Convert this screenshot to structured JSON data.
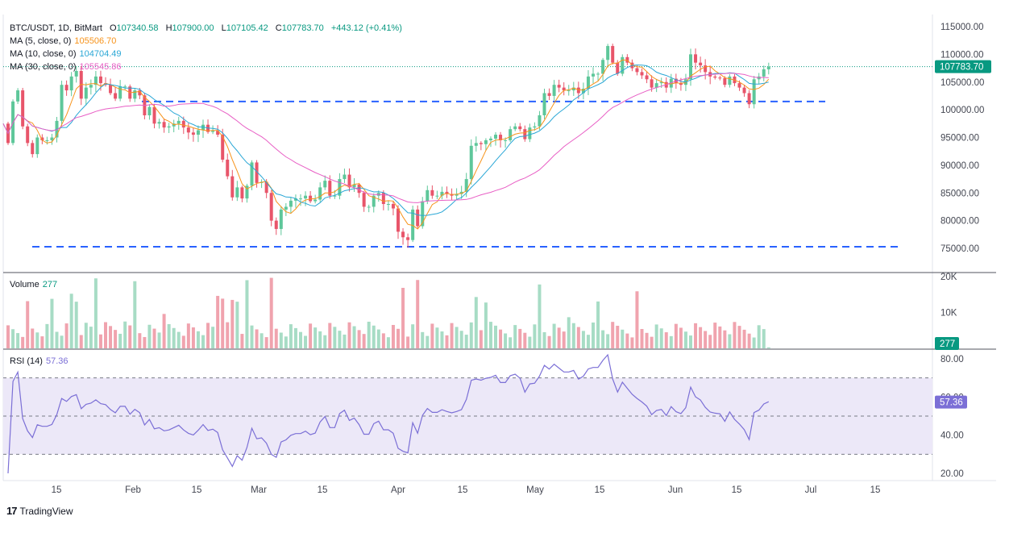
{
  "header": {
    "symbol": "BTC/USDT, 1D, BitMart",
    "o_label": "O",
    "o_value": "107340.58",
    "h_label": "H",
    "h_value": "107900.00",
    "l_label": "L",
    "l_value": "107105.42",
    "c_label": "C",
    "c_value": "107783.70",
    "change": "+443.12 (+0.41%)"
  },
  "ma_legend": [
    {
      "label": "MA (5, close, 0)",
      "value": "105506.70",
      "color": "#f7931a"
    },
    {
      "label": "MA (10, close, 0)",
      "value": "104704.49",
      "color": "#2aa7d6"
    },
    {
      "label": "MA (30, close, 0)",
      "value": "105545.86",
      "color": "#e85fc5"
    }
  ],
  "volume_legend": {
    "label": "Volume",
    "value": "277"
  },
  "rsi_legend": {
    "label": "RSI (14)",
    "value": "57.36"
  },
  "brand": {
    "name": "TradingView"
  },
  "colors": {
    "up": "#5ec79a",
    "down": "#e8556a",
    "vol_up": "#a7dcc5",
    "vol_down": "#f0a3ae",
    "rsi": "#7b6fd6",
    "rsi_band": "#ece8f8",
    "hline": "#2962ff",
    "last_price": "#089981"
  },
  "chart_data": {
    "type": "candlestick",
    "price_axis": {
      "ticks": [
        "115000.00",
        "110000.00",
        "105000.00",
        "100000.00",
        "95000.00",
        "90000.00",
        "85000.00",
        "80000.00",
        "75000.00"
      ],
      "last_price_label": "107783.70"
    },
    "volume_axis": {
      "ticks": [
        "20K",
        "10K"
      ],
      "last_label": "277"
    },
    "rsi_axis": {
      "ticks": [
        "80.00",
        "60.00",
        "40.00",
        "20.00"
      ],
      "last_label": "57.36"
    },
    "time_axis": {
      "labels": [
        "15",
        "Feb",
        "15",
        "Mar",
        "15",
        "Apr",
        "15",
        "May",
        "15",
        "Jun",
        "15",
        "Jul",
        "15"
      ]
    },
    "horizontal_lines": [
      101500,
      75300
    ],
    "close_path": [
      [
        97500,
        -1
      ],
      [
        94000,
        0
      ],
      [
        101500,
        1
      ],
      [
        103500,
        2
      ],
      [
        97000,
        3
      ],
      [
        94000,
        4
      ],
      [
        92000,
        5
      ],
      [
        95000,
        6
      ],
      [
        94500,
        7
      ],
      [
        94500,
        8
      ],
      [
        95000,
        9
      ],
      [
        98000,
        10
      ],
      [
        104500,
        11
      ],
      [
        103500,
        12
      ],
      [
        106000,
        13
      ],
      [
        107000,
        14
      ],
      [
        102000,
        15
      ],
      [
        104000,
        16
      ],
      [
        104500,
        17
      ],
      [
        106000,
        18
      ],
      [
        104800,
        19
      ],
      [
        104500,
        20
      ],
      [
        103000,
        21
      ],
      [
        102000,
        22
      ],
      [
        104200,
        23
      ],
      [
        104200,
        24
      ],
      [
        102000,
        25
      ],
      [
        103500,
        26
      ],
      [
        102600,
        27
      ],
      [
        99000,
        28
      ],
      [
        100500,
        29
      ],
      [
        97500,
        30
      ],
      [
        97800,
        31
      ],
      [
        96800,
        32
      ],
      [
        97000,
        33
      ],
      [
        97500,
        34
      ],
      [
        98000,
        35
      ],
      [
        96800,
        36
      ],
      [
        95900,
        37
      ],
      [
        95500,
        38
      ],
      [
        96300,
        39
      ],
      [
        97300,
        40
      ],
      [
        96000,
        41
      ],
      [
        96200,
        42
      ],
      [
        95500,
        43
      ],
      [
        91000,
        44
      ],
      [
        88000,
        45
      ],
      [
        84200,
        46
      ],
      [
        86000,
        47
      ],
      [
        84000,
        48
      ],
      [
        86300,
        49
      ],
      [
        90500,
        50
      ],
      [
        86800,
        51
      ],
      [
        87000,
        52
      ],
      [
        85000,
        53
      ],
      [
        80000,
        54
      ],
      [
        78500,
        55
      ],
      [
        82000,
        56
      ],
      [
        82500,
        57
      ],
      [
        83600,
        58
      ],
      [
        84000,
        59
      ],
      [
        84000,
        60
      ],
      [
        84500,
        61
      ],
      [
        83500,
        62
      ],
      [
        83800,
        63
      ],
      [
        86000,
        64
      ],
      [
        87200,
        65
      ],
      [
        84500,
        66
      ],
      [
        84500,
        67
      ],
      [
        87500,
        68
      ],
      [
        88300,
        69
      ],
      [
        86000,
        70
      ],
      [
        86500,
        71
      ],
      [
        85000,
        72
      ],
      [
        82500,
        73
      ],
      [
        82500,
        74
      ],
      [
        84500,
        75
      ],
      [
        85000,
        76
      ],
      [
        83000,
        77
      ],
      [
        83000,
        78
      ],
      [
        82200,
        79
      ],
      [
        78000,
        80
      ],
      [
        77000,
        81
      ],
      [
        76500,
        82
      ],
      [
        82000,
        83
      ],
      [
        79000,
        84
      ],
      [
        83500,
        85
      ],
      [
        85500,
        86
      ],
      [
        84500,
        87
      ],
      [
        84500,
        88
      ],
      [
        85200,
        89
      ],
      [
        84800,
        90
      ],
      [
        84500,
        91
      ],
      [
        84800,
        92
      ],
      [
        85200,
        93
      ],
      [
        87500,
        94
      ],
      [
        93500,
        95
      ],
      [
        94000,
        96
      ],
      [
        93800,
        97
      ],
      [
        94500,
        98
      ],
      [
        94800,
        99
      ],
      [
        95500,
        100
      ],
      [
        94500,
        101
      ],
      [
        94500,
        102
      ],
      [
        96500,
        103
      ],
      [
        97000,
        104
      ],
      [
        96500,
        105
      ],
      [
        94700,
        106
      ],
      [
        96800,
        107
      ],
      [
        97000,
        108
      ],
      [
        99000,
        109
      ],
      [
        103000,
        110
      ],
      [
        102500,
        111
      ],
      [
        104500,
        112
      ],
      [
        104000,
        113
      ],
      [
        103500,
        114
      ],
      [
        103500,
        115
      ],
      [
        104000,
        116
      ],
      [
        103000,
        117
      ],
      [
        103800,
        118
      ],
      [
        106000,
        119
      ],
      [
        106500,
        120
      ],
      [
        106500,
        121
      ],
      [
        109000,
        122
      ],
      [
        111500,
        123
      ],
      [
        108500,
        124
      ],
      [
        106500,
        125
      ],
      [
        109500,
        126
      ],
      [
        108500,
        127
      ],
      [
        107500,
        128
      ],
      [
        106800,
        129
      ],
      [
        106200,
        130
      ],
      [
        105500,
        131
      ],
      [
        104000,
        132
      ],
      [
        104800,
        133
      ],
      [
        105000,
        134
      ],
      [
        104000,
        135
      ],
      [
        105600,
        136
      ],
      [
        104800,
        137
      ],
      [
        104500,
        138
      ],
      [
        105500,
        139
      ],
      [
        110000,
        140
      ],
      [
        108500,
        141
      ],
      [
        108000,
        142
      ],
      [
        106800,
        143
      ],
      [
        106000,
        144
      ],
      [
        105800,
        145
      ],
      [
        105700,
        146
      ],
      [
        104500,
        147
      ],
      [
        106000,
        148
      ],
      [
        104800,
        149
      ],
      [
        104000,
        150
      ],
      [
        103000,
        151
      ],
      [
        101000,
        152
      ],
      [
        105500,
        153
      ],
      [
        106000,
        154
      ],
      [
        107300,
        155
      ],
      [
        107783.7,
        156
      ]
    ],
    "ma_series": [
      {
        "name": "MA 5",
        "value": 105506.7
      },
      {
        "name": "MA 10",
        "value": 104704.49
      },
      {
        "name": "MA 30",
        "value": 105545.86
      }
    ],
    "volume_last": 277,
    "rsi_last": 57.36
  }
}
